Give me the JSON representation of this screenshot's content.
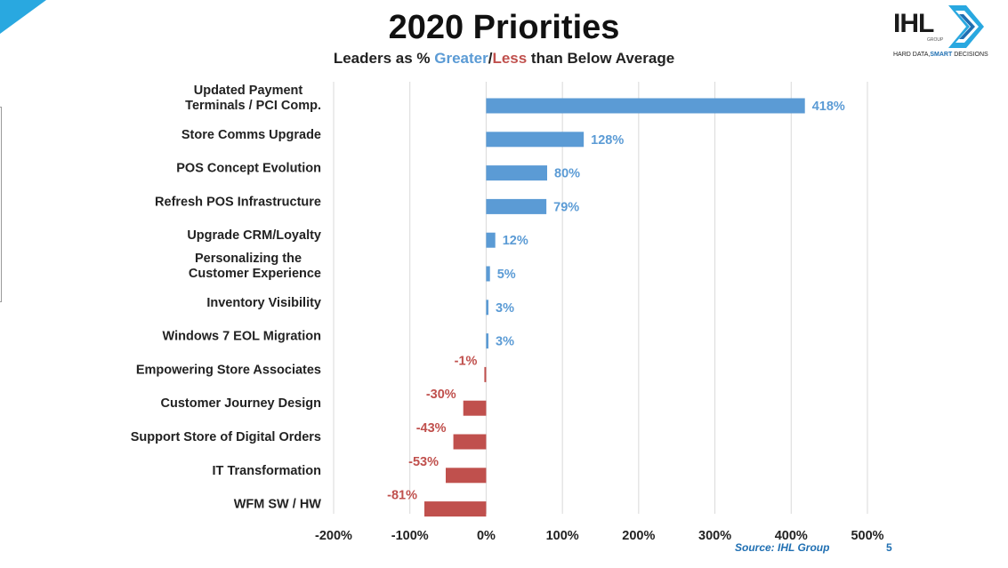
{
  "header": {
    "title": "2020 Priorities",
    "subtitle_prefix": "Leaders as % ",
    "subtitle_greater": "Greater",
    "subtitle_slash": "/",
    "subtitle_less": "Less",
    "subtitle_suffix": " than Below Average"
  },
  "logo": {
    "text": "IHL",
    "group": "GROUP",
    "tagline_normal": "HARD DATA,",
    "tagline_bold": "SMART",
    "tagline_end": " DECISIONS"
  },
  "footer": {
    "source": "Source: IHL Group",
    "page_number": "5"
  },
  "colors": {
    "positive": "#5b9bd5",
    "negative": "#c0504d",
    "gridline": "#d9d9d9",
    "accent": "#29a8e0"
  },
  "chart_data": {
    "type": "bar",
    "orientation": "horizontal",
    "title": "2020 Priorities",
    "xlim": [
      -200,
      500
    ],
    "xticks": [
      -200,
      -100,
      0,
      100,
      200,
      300,
      400,
      500
    ],
    "xtick_labels": [
      "-200%",
      "-100%",
      "0%",
      "100%",
      "200%",
      "300%",
      "400%",
      "500%"
    ],
    "grid": true,
    "categories": [
      [
        "Updated Payment",
        "Terminals / PCI Comp."
      ],
      [
        "Store Comms Upgrade"
      ],
      [
        "POS Concept Evolution"
      ],
      [
        "Refresh POS Infrastructure"
      ],
      [
        "Upgrade CRM/Loyalty"
      ],
      [
        "Personalizing the",
        "Customer Experience"
      ],
      [
        "Inventory Visibility"
      ],
      [
        "Windows 7 EOL Migration"
      ],
      [
        "Empowering Store Associates"
      ],
      [
        "Customer Journey Design"
      ],
      [
        "Support Store of Digital Orders"
      ],
      [
        "IT Transformation"
      ],
      [
        "WFM SW / HW"
      ]
    ],
    "values": [
      418,
      128,
      80,
      79,
      12,
      5,
      3,
      3,
      -1,
      -30,
      -43,
      -53,
      -81
    ],
    "value_labels": [
      "418%",
      "128%",
      "80%",
      "79%",
      "12%",
      "5%",
      "3%",
      "3%",
      "-1%",
      "-30%",
      "-43%",
      "-53%",
      "-81%"
    ]
  }
}
